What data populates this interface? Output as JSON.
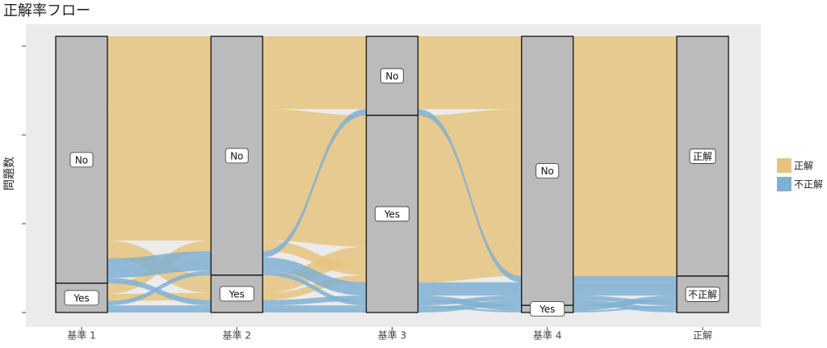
{
  "chart_data": {
    "type": "alluvial",
    "title": "正解率フロー",
    "y_label": "問題数",
    "axes": [
      "基準 1",
      "基準 2",
      "基準 3",
      "基準 4",
      "正解"
    ],
    "strata": [
      [
        {
          "name": "No",
          "value": 278
        },
        {
          "name": "Yes",
          "value": 33
        }
      ],
      [
        {
          "name": "No",
          "value": 269
        },
        {
          "name": "Yes",
          "value": 42
        }
      ],
      [
        {
          "name": "No",
          "value": 89
        },
        {
          "name": "Yes",
          "value": 222
        }
      ],
      [
        {
          "name": "No",
          "value": 303
        },
        {
          "name": "Yes",
          "value": 8
        }
      ],
      [
        {
          "name": "正解",
          "value": 270
        },
        {
          "name": "不正解",
          "value": 41
        }
      ]
    ],
    "series": [
      {
        "name": "正解",
        "color": "#e6c47f"
      },
      {
        "name": "不正解",
        "color": "#7fb0d3"
      }
    ],
    "alluvia": [
      {
        "path": [
          "No",
          "No",
          "No",
          "No",
          "正解"
        ],
        "value": 82
      },
      {
        "path": [
          "No",
          "No",
          "Yes",
          "No",
          "正解"
        ],
        "value": 148
      },
      {
        "path": [
          "No",
          "Yes",
          "Yes",
          "No",
          "正解"
        ],
        "value": 20
      },
      {
        "path": [
          "Yes",
          "No",
          "Yes",
          "No",
          "正解"
        ],
        "value": 12
      },
      {
        "path": [
          "Yes",
          "Yes",
          "Yes",
          "No",
          "正解"
        ],
        "value": 8
      },
      {
        "path": [
          "No",
          "No",
          "No",
          "No",
          "不正解"
        ],
        "value": 7
      },
      {
        "path": [
          "No",
          "No",
          "Yes",
          "No",
          "不正解"
        ],
        "value": 15
      },
      {
        "path": [
          "No",
          "Yes",
          "Yes",
          "Yes",
          "不正解"
        ],
        "value": 6
      },
      {
        "path": [
          "Yes",
          "No",
          "Yes",
          "No",
          "不正解"
        ],
        "value": 5
      },
      {
        "path": [
          "Yes",
          "Yes",
          "Yes",
          "Yes",
          "不正解"
        ],
        "value": 2
      },
      {
        "path": [
          "Yes",
          "Yes",
          "Yes",
          "No",
          "不正解"
        ],
        "value": 6
      }
    ],
    "ylim": [
      0,
      311
    ],
    "yticks": [
      0,
      100,
      200,
      300
    ]
  }
}
